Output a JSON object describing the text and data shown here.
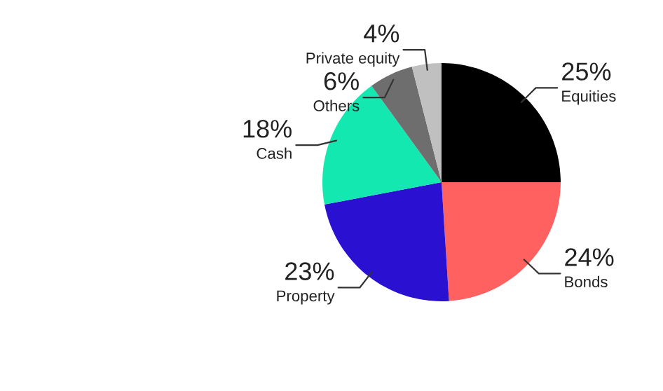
{
  "chart_data": {
    "type": "pie",
    "categories": [
      "Equities",
      "Bonds",
      "Property",
      "Cash",
      "Others",
      "Private equity"
    ],
    "values": [
      25,
      24,
      23,
      18,
      6,
      4
    ],
    "colors": [
      "#000000",
      "#ff6161",
      "#2a10d0",
      "#13e8b0",
      "#6e6e6e",
      "#c0c0c0"
    ],
    "value_labels": [
      "25%",
      "24%",
      "23%",
      "18%",
      "6%",
      "4%"
    ],
    "legend": false
  }
}
